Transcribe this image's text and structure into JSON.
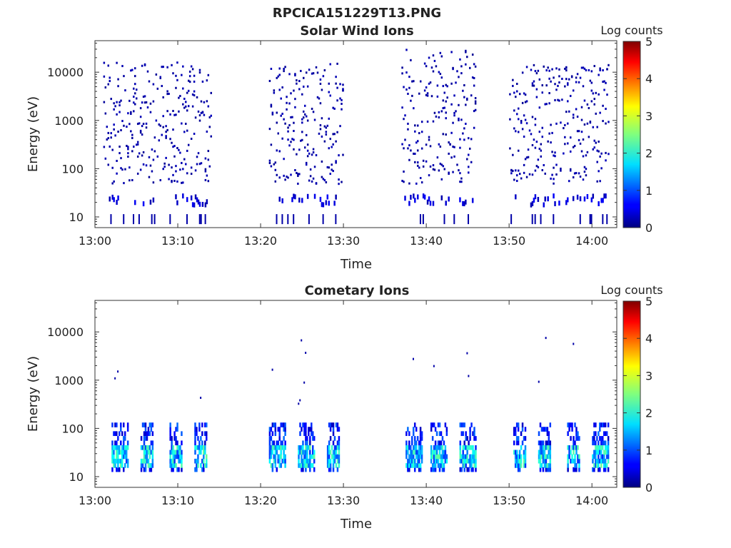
{
  "figure": {
    "filename": "RPCICA151229T13.PNG"
  },
  "colorbar": {
    "label": "Log counts",
    "ticks": [
      "0",
      "1",
      "2",
      "3",
      "4",
      "5"
    ],
    "range": [
      0,
      5
    ],
    "colormap": "jet"
  },
  "chart_data": [
    {
      "type": "heatmap",
      "title": "Solar Wind Ions",
      "xlabel": "Time",
      "ylabel": "Energy (eV)",
      "x_range": [
        "13:00",
        "14:03"
      ],
      "y_scale": "log",
      "ylim": [
        6,
        45000
      ],
      "x_ticks": [
        "13:00",
        "13:10",
        "13:20",
        "13:30",
        "13:40",
        "13:50",
        "14:00"
      ],
      "y_ticks": [
        "10",
        "100",
        "1000",
        "10000"
      ],
      "color_level": "log counts about 0 (dark blue), scattered single counts",
      "bursts": [
        {
          "start": "13:01",
          "end": "13:14",
          "emin": 6,
          "emax": 16000
        },
        {
          "start": "13:21",
          "end": "13:30",
          "emin": 6,
          "emax": 15000
        },
        {
          "start": "13:37",
          "end": "13:46",
          "emin": 6,
          "emax": 30000
        },
        {
          "start": "13:50",
          "end": "14:02",
          "emin": 6,
          "emax": 14000
        }
      ]
    },
    {
      "type": "heatmap",
      "title": "Cometary Ions",
      "xlabel": "Time",
      "ylabel": "Energy (eV)",
      "x_range": [
        "13:00",
        "14:03"
      ],
      "y_scale": "log",
      "ylim": [
        6,
        45000
      ],
      "x_ticks": [
        "13:00",
        "13:10",
        "13:20",
        "13:30",
        "13:40",
        "13:50",
        "14:00"
      ],
      "y_ticks": [
        "10",
        "100",
        "1000",
        "10000"
      ],
      "color_level": "log counts up to about 2.5 between 15 and 40 eV",
      "bursts": [
        {
          "start": "13:02",
          "end": "13:04",
          "emin": 13,
          "emax": 120
        },
        {
          "start": "13:05.5",
          "end": "13:07",
          "emin": 13,
          "emax": 120
        },
        {
          "start": "13:09",
          "end": "13:10.5",
          "emin": 13,
          "emax": 120
        },
        {
          "start": "13:12",
          "end": "13:13.5",
          "emin": 13,
          "emax": 120
        },
        {
          "start": "13:21",
          "end": "13:23",
          "emin": 13,
          "emax": 120
        },
        {
          "start": "13:24.5",
          "end": "13:26.5",
          "emin": 13,
          "emax": 120
        },
        {
          "start": "13:28",
          "end": "13:29.5",
          "emin": 13,
          "emax": 120
        },
        {
          "start": "13:37.5",
          "end": "13:39.5",
          "emin": 13,
          "emax": 120
        },
        {
          "start": "13:40.5",
          "end": "13:42.5",
          "emin": 13,
          "emax": 120
        },
        {
          "start": "13:44",
          "end": "13:46",
          "emin": 13,
          "emax": 120
        },
        {
          "start": "13:50.5",
          "end": "13:52",
          "emin": 13,
          "emax": 120
        },
        {
          "start": "13:53.5",
          "end": "13:55",
          "emin": 13,
          "emax": 120
        },
        {
          "start": "13:57",
          "end": "13:58.5",
          "emin": 13,
          "emax": 120
        },
        {
          "start": "14:00",
          "end": "14:02",
          "emin": 13,
          "emax": 120
        }
      ]
    }
  ]
}
